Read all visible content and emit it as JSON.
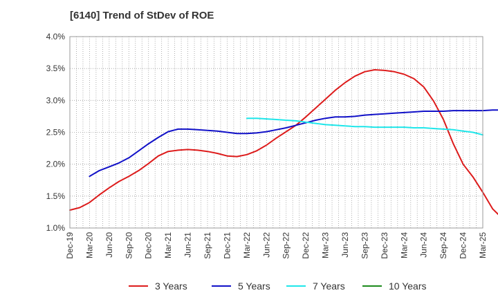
{
  "chart_data": {
    "type": "line",
    "title": "[6140]  Trend of StDev of ROE",
    "xlabel": "",
    "ylabel": "",
    "ylim": [
      1.0,
      4.0
    ],
    "y_ticks": [
      "1.0%",
      "1.5%",
      "2.0%",
      "2.5%",
      "3.0%",
      "3.5%",
      "4.0%"
    ],
    "x_ticks": [
      "Dec-19",
      "Mar-20",
      "Jun-20",
      "Sep-20",
      "Dec-20",
      "Mar-21",
      "Jun-21",
      "Sep-21",
      "Dec-21",
      "Mar-22",
      "Jun-22",
      "Sep-22",
      "Dec-22",
      "Mar-23",
      "Jun-23",
      "Sep-23",
      "Dec-23",
      "Mar-24",
      "Jun-24",
      "Sep-24",
      "Dec-24",
      "Mar-25"
    ],
    "grid": true,
    "legend_position": "bottom",
    "series": [
      {
        "name": "3 Years",
        "color": "#dd1b1b",
        "x_start_index": 0,
        "values": [
          1.28,
          1.32,
          1.4,
          1.52,
          1.63,
          1.73,
          1.81,
          1.9,
          2.01,
          2.13,
          2.2,
          2.22,
          2.23,
          2.22,
          2.2,
          2.17,
          2.13,
          2.12,
          2.15,
          2.21,
          2.3,
          2.41,
          2.51,
          2.61,
          2.74,
          2.88,
          3.02,
          3.16,
          3.28,
          3.38,
          3.45,
          3.48,
          3.47,
          3.45,
          3.41,
          3.34,
          3.21,
          2.99,
          2.7,
          2.32,
          2.0,
          1.8,
          1.56,
          1.3,
          1.15,
          1.08,
          1.06,
          1.06,
          1.06
        ]
      },
      {
        "name": "5 Years",
        "color": "#1010c8",
        "x_start_index": 1,
        "values": [
          1.81,
          1.9,
          1.96,
          2.02,
          2.1,
          2.21,
          2.32,
          2.42,
          2.51,
          2.55,
          2.55,
          2.54,
          2.53,
          2.52,
          2.5,
          2.48,
          2.48,
          2.49,
          2.51,
          2.54,
          2.57,
          2.61,
          2.65,
          2.69,
          2.72,
          2.74,
          2.74,
          2.75,
          2.77,
          2.78,
          2.79,
          2.8,
          2.81,
          2.82,
          2.83,
          2.83,
          2.83,
          2.84,
          2.84,
          2.84,
          2.84,
          2.85,
          2.85,
          2.86,
          2.86
        ]
      },
      {
        "name": "7 Years",
        "color": "#1ee6ea",
        "x_start_index": 9,
        "values": [
          2.72,
          2.72,
          2.71,
          2.7,
          2.69,
          2.68,
          2.66,
          2.64,
          2.62,
          2.61,
          2.6,
          2.59,
          2.59,
          2.58,
          2.58,
          2.58,
          2.58,
          2.57,
          2.57,
          2.56,
          2.55,
          2.54,
          2.52,
          2.5,
          2.46
        ]
      },
      {
        "name": "10 Years",
        "color": "#1b8a1b",
        "x_start_index": 0,
        "values": []
      }
    ]
  }
}
